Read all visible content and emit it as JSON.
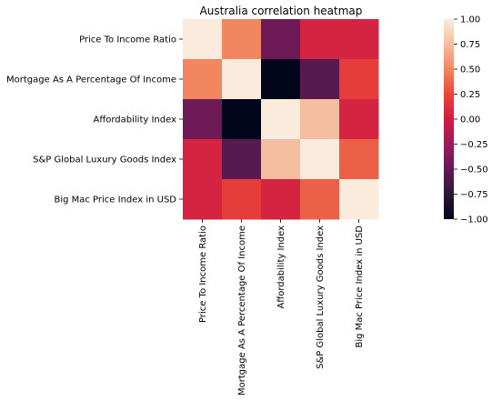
{
  "chart_data": {
    "type": "heatmap",
    "title": "Australia correlation heatmap",
    "x_labels": [
      "Price To Income Ratio",
      "Mortgage As A Percentage Of Income",
      "Affordability Index",
      "S&P Global Luxury Goods Index",
      "Big Mac Price Index in USD"
    ],
    "y_labels": [
      "Price To Income Ratio",
      "Mortgage As A Percentage Of Income",
      "Affordability Index",
      "S&P Global Luxury Goods Index",
      "Big Mac Price Index in USD"
    ],
    "values": [
      [
        1.0,
        0.5,
        -0.45,
        0.05,
        0.05
      ],
      [
        0.5,
        1.0,
        -1.0,
        -0.55,
        0.2
      ],
      [
        -0.45,
        -1.0,
        1.0,
        0.75,
        0.05
      ],
      [
        0.05,
        -0.55,
        0.75,
        1.0,
        0.35
      ],
      [
        0.05,
        0.2,
        0.05,
        0.35,
        1.0
      ]
    ],
    "colorbar": {
      "range": [
        -1.0,
        1.0
      ],
      "ticks": [
        "1.00",
        "0.75",
        "0.50",
        "0.25",
        "0.00",
        "−0.25",
        "−0.50",
        "−0.75",
        "−1.00"
      ],
      "colormap": "rocket"
    },
    "grid": false
  }
}
